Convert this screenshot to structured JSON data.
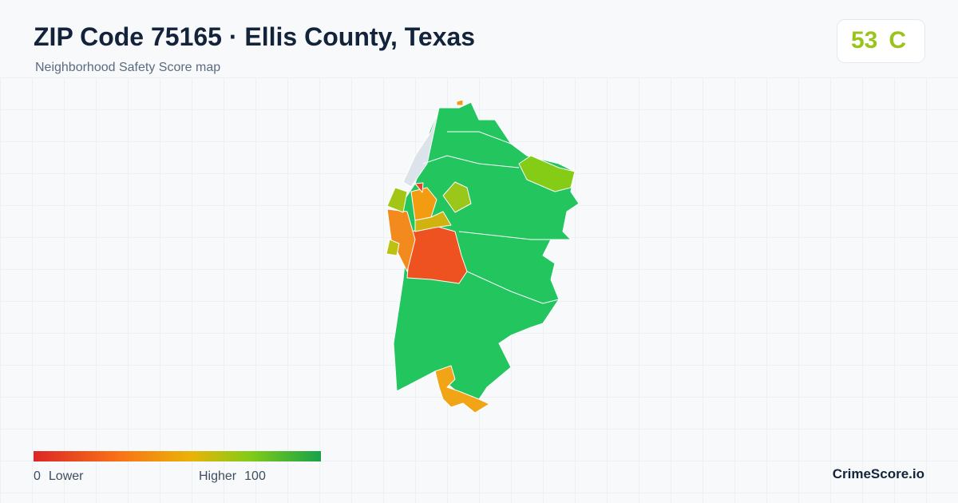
{
  "header": {
    "title": "ZIP Code 75165 · Ellis County, Texas",
    "subtitle": "Neighborhood Safety Score map"
  },
  "score": {
    "value": 53,
    "grade": "C"
  },
  "legend": {
    "min": 0,
    "min_label": "Lower",
    "max_label": "Higher",
    "max": 100
  },
  "brand": "CrimeScore.io"
}
